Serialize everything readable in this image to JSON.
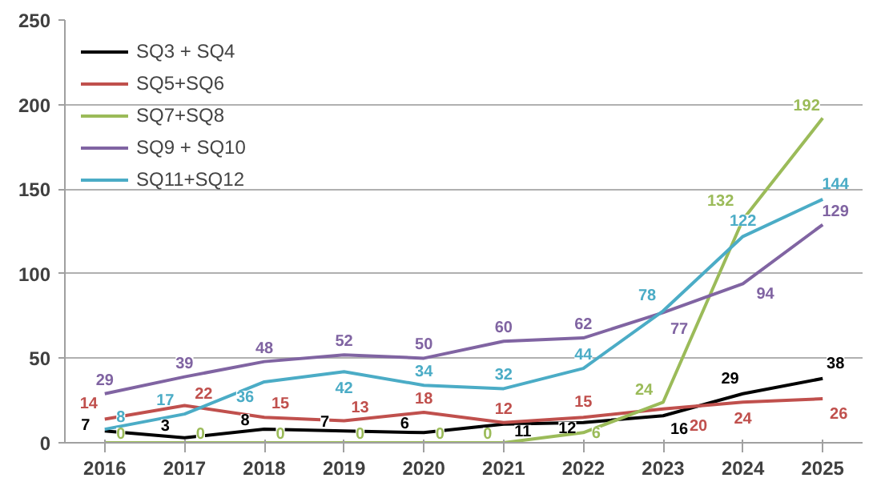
{
  "chart_data": {
    "type": "line",
    "categories": [
      "2016",
      "2017",
      "2018",
      "2019",
      "2020",
      "2021",
      "2022",
      "2023",
      "2024",
      "2025"
    ],
    "series": [
      {
        "name": "SQ3 + SQ4",
        "color": "#000000",
        "values": [
          7,
          3,
          8,
          7,
          6,
          11,
          12,
          16,
          29,
          38
        ]
      },
      {
        "name": "SQ5+SQ6",
        "color": "#c0504d",
        "values": [
          14,
          22,
          15,
          13,
          18,
          12,
          15,
          20,
          24,
          26
        ]
      },
      {
        "name": "SQ7+SQ8",
        "color": "#9bbb59",
        "values": [
          0,
          0,
          0,
          0,
          0,
          0,
          6,
          24,
          132,
          192
        ]
      },
      {
        "name": "SQ9 + SQ10",
        "color": "#8064a2",
        "values": [
          29,
          39,
          48,
          52,
          50,
          60,
          62,
          77,
          94,
          129
        ]
      },
      {
        "name": "SQ11+SQ12",
        "color": "#4bacc6",
        "values": [
          8,
          17,
          36,
          42,
          34,
          32,
          44,
          78,
          122,
          144
        ]
      }
    ],
    "ylim": [
      0,
      250
    ],
    "yticks": [
      0,
      50,
      100,
      150,
      200,
      250
    ],
    "grid": "y",
    "legend": "top left",
    "data_labels": true,
    "marker": "none",
    "line_style": "solid"
  }
}
